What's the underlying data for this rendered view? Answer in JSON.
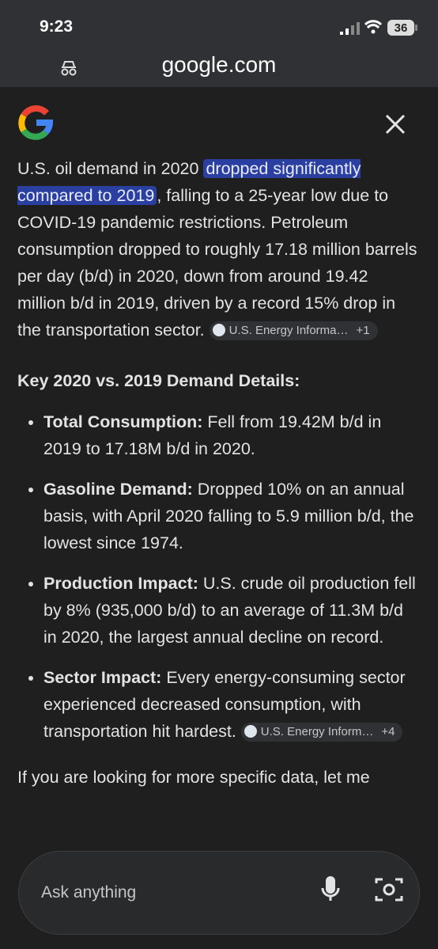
{
  "status": {
    "time": "9:23",
    "battery": "36"
  },
  "browser": {
    "url": "google.com"
  },
  "answer": {
    "intro": {
      "before": "U.S. oil demand in 2020 ",
      "highlight": "dropped significantly compared to 2019",
      "after": ", falling to a 25-year low due to COVID-19 pandemic restrictions. Petroleum consumption dropped to roughly 17.18 million barrels per day (b/d) in 2020, down from around 19.42 million b/d in 2019, driven by a record 15% drop in the transportation sector.",
      "source": "U.S. Energy Informa…",
      "more": "+1"
    },
    "heading": "Key 2020 vs. 2019 Demand Details:",
    "bullets": [
      {
        "label": "Total Consumption:",
        "text": " Fell from 19.42M b/d in 2019 to 17.18M b/d in 2020."
      },
      {
        "label": "Gasoline Demand:",
        "text": " Dropped 10% on an annual basis, with April 2020 falling to 5.9 million b/d, the lowest since 1974."
      },
      {
        "label": "Production Impact:",
        "text": " U.S. crude oil production fell by 8% (935,000 b/d) to an average of 11.3M b/d in 2020, the largest annual decline on record."
      },
      {
        "label": "Sector Impact:",
        "text": " Every energy-consuming sector experienced decreased consumption, with transportation hit hardest.",
        "source": "U.S. Energy Inform…",
        "more": "+4"
      }
    ],
    "closing": "If you are looking for more specific data, let me"
  },
  "input": {
    "placeholder": "Ask anything"
  }
}
